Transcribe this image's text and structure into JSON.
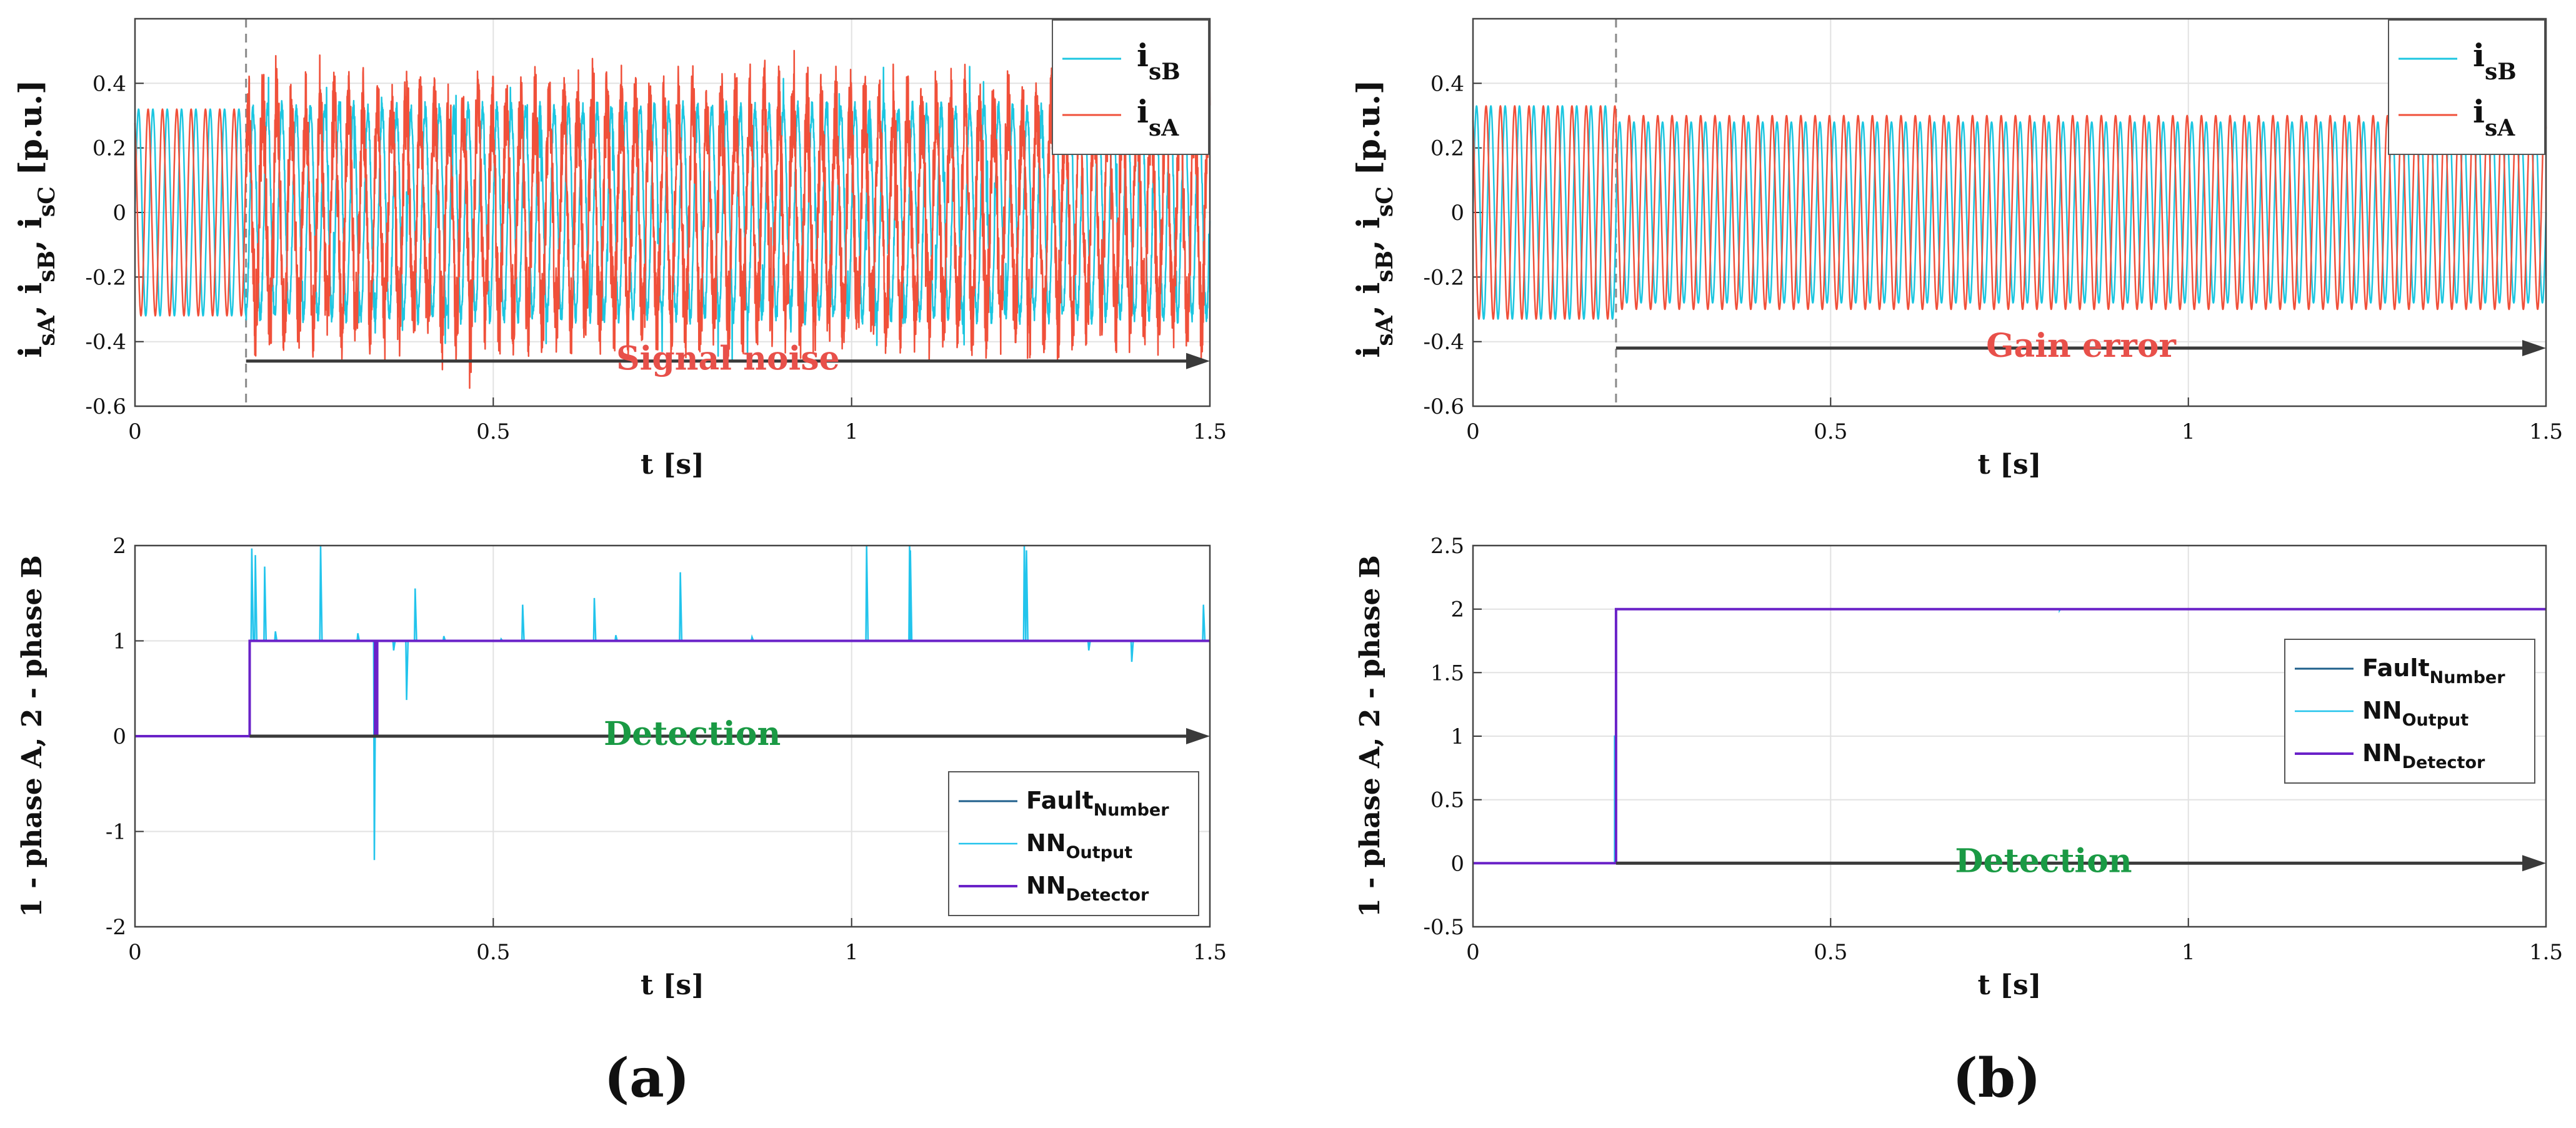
{
  "panel_labels": [
    "(a)",
    "(b)"
  ],
  "colors": {
    "isB": "#1cc6e0",
    "isA": "#f0503a",
    "fault": "#1f5f8b",
    "nn_output": "#22c4ec",
    "nn_detector": "#6a22c8",
    "arrow": "#3a3a3a",
    "annotation_red": "#e8504a",
    "annotation_green": "#1a9a44",
    "grid": "#e2e2e2",
    "fault_start": "#8a8a8a"
  },
  "chart_data": [
    {
      "id": "a-top",
      "type": "line",
      "xlabel": "t [s]",
      "ylabel": "i_sA, i_sB, i_sC [p.u.]",
      "xlim": [
        0,
        1.5
      ],
      "ylim": [
        -0.6,
        0.6
      ],
      "xticks": [
        0,
        0.5,
        1,
        1.5
      ],
      "xtick_labels": [
        "0",
        "0.5",
        "1",
        "1.5"
      ],
      "yticks": [
        -0.6,
        -0.4,
        -0.2,
        0,
        0.2,
        0.4
      ],
      "ytick_labels": [
        "-0.6",
        "-0.4",
        "-0.2",
        "0",
        "0.2",
        "0.4"
      ],
      "grid": true,
      "legend_position": "top-right",
      "fault_start": 0.155,
      "annotation": {
        "text": "Signal noise",
        "from": 0.155,
        "to": 1.5,
        "y": -0.46,
        "color": "annotation_red"
      },
      "series": [
        {
          "name": "i_sB",
          "signal": "sine",
          "amplitude": 0.32,
          "cycles_per_second": 50,
          "phase_deg": 0,
          "noise_after_fault": 0.02,
          "color": "isB"
        },
        {
          "name": "i_sA",
          "signal": "sine",
          "amplitude": 0.32,
          "cycles_per_second": 50,
          "phase_deg": 120,
          "noise_after_fault": 0.1,
          "color": "isA"
        }
      ]
    },
    {
      "id": "b-top",
      "type": "line",
      "xlabel": "t [s]",
      "ylabel": "i_sA, i_sB, i_sC [p.u.]",
      "xlim": [
        0,
        1.5
      ],
      "ylim": [
        -0.6,
        0.6
      ],
      "xticks": [
        0,
        0.5,
        1,
        1.5
      ],
      "xtick_labels": [
        "0",
        "0.5",
        "1",
        "1.5"
      ],
      "yticks": [
        -0.6,
        -0.4,
        -0.2,
        0,
        0.2,
        0.4
      ],
      "ytick_labels": [
        "-0.6",
        "-0.4",
        "-0.2",
        "0",
        "0.2",
        "0.4"
      ],
      "grid": true,
      "legend_position": "top-right",
      "fault_start": 0.2,
      "annotation": {
        "text": "Gain error",
        "from": 0.2,
        "to": 1.5,
        "y": -0.42,
        "color": "annotation_red"
      },
      "series": [
        {
          "name": "i_sB",
          "signal": "sine",
          "amplitude": 0.33,
          "amplitude_after_fault": 0.28,
          "cycles_per_second": 50,
          "phase_deg": 0,
          "color": "isB"
        },
        {
          "name": "i_sA",
          "signal": "sine",
          "amplitude": 0.33,
          "amplitude_after_fault": 0.3,
          "cycles_per_second": 50,
          "phase_deg": 120,
          "color": "isA"
        }
      ]
    },
    {
      "id": "a-bottom",
      "type": "line",
      "xlabel": "t [s]",
      "ylabel": "1 - phase A, 2 - phase B",
      "xlim": [
        0,
        1.5
      ],
      "ylim": [
        -2,
        2
      ],
      "xticks": [
        0,
        0.5,
        1,
        1.5
      ],
      "xtick_labels": [
        "0",
        "0.5",
        "1",
        "1.5"
      ],
      "yticks": [
        -2,
        -1,
        0,
        1,
        2
      ],
      "ytick_labels": [
        "-2",
        "-1",
        "0",
        "1",
        "2"
      ],
      "grid": true,
      "legend_position": "bottom-right",
      "annotation": {
        "text": "Detection",
        "from": 0.16,
        "to": 1.5,
        "y": 0,
        "color": "annotation_green"
      },
      "series": [
        {
          "name": "Fault",
          "subscript": "Number",
          "color": "fault",
          "width": 3,
          "points": [
            [
              0,
              0
            ],
            [
              0.16,
              0
            ],
            [
              0.16,
              1
            ],
            [
              1.5,
              1
            ]
          ]
        },
        {
          "name": "NN",
          "subscript": "Output",
          "color": "nn_output",
          "width": 2.5,
          "baseline": 1,
          "fault_time": 0.16,
          "spikes": [
            [
              0.162,
              1.97
            ],
            [
              0.167,
              1.9
            ],
            [
              0.18,
              1.78
            ],
            [
              0.195,
              1.1
            ],
            [
              0.258,
              2.0
            ],
            [
              0.31,
              1.08
            ],
            [
              0.333,
              -1.3
            ],
            [
              0.36,
              0.9
            ],
            [
              0.378,
              0.38
            ],
            [
              0.39,
              1.55
            ],
            [
              0.43,
              1.05
            ],
            [
              0.51,
              1.02
            ],
            [
              0.54,
              1.38
            ],
            [
              0.64,
              1.45
            ],
            [
              0.67,
              1.06
            ],
            [
              0.76,
              1.72
            ],
            [
              0.86,
              1.04
            ],
            [
              1.02,
              2.0
            ],
            [
              1.08,
              2.0
            ],
            [
              1.081,
              1.95
            ],
            [
              1.24,
              2.0
            ],
            [
              1.243,
              1.95
            ],
            [
              1.33,
              0.9
            ],
            [
              1.39,
              0.78
            ],
            [
              1.49,
              1.38
            ]
          ]
        },
        {
          "name": "NN",
          "subscript": "Detector",
          "color": "nn_detector",
          "width": 4,
          "points": [
            [
              0,
              0
            ],
            [
              0.16,
              0
            ],
            [
              0.16,
              1
            ],
            [
              0.335,
              1
            ],
            [
              0.335,
              0
            ],
            [
              0.338,
              0
            ],
            [
              0.338,
              1
            ],
            [
              1.5,
              1
            ]
          ]
        }
      ]
    },
    {
      "id": "b-bottom",
      "type": "line",
      "xlabel": "t [s]",
      "ylabel": "1 - phase A, 2 - phase B",
      "xlim": [
        0,
        1.5
      ],
      "ylim": [
        -0.5,
        2.5
      ],
      "xticks": [
        0,
        0.5,
        1,
        1.5
      ],
      "xtick_labels": [
        "0",
        "0.5",
        "1",
        "1.5"
      ],
      "yticks": [
        -0.5,
        0,
        0.5,
        1,
        1.5,
        2,
        2.5
      ],
      "ytick_labels": [
        "-0.5",
        "0",
        "0.5",
        "1",
        "1.5",
        "2",
        "2.5"
      ],
      "grid": true,
      "legend_position": "right",
      "annotation": {
        "text": "Detection",
        "from": 0.2,
        "to": 1.5,
        "y": 0,
        "color": "annotation_green"
      },
      "series": [
        {
          "name": "Fault",
          "subscript": "Number",
          "color": "fault",
          "width": 3,
          "points": [
            [
              0,
              0
            ],
            [
              0.2,
              0
            ],
            [
              0.2,
              2
            ],
            [
              1.5,
              2
            ]
          ]
        },
        {
          "name": "NN",
          "subscript": "Output",
          "color": "nn_output",
          "width": 2.5,
          "points": [
            [
              0,
              0
            ],
            [
              0.198,
              0
            ],
            [
              0.198,
              1.0
            ],
            [
              0.2,
              1.0
            ],
            [
              0.2,
              2
            ],
            [
              0.82,
              2
            ],
            [
              0.82,
              1.99
            ],
            [
              0.821,
              2
            ],
            [
              1.5,
              2
            ]
          ]
        },
        {
          "name": "NN",
          "subscript": "Detector",
          "color": "nn_detector",
          "width": 4,
          "points": [
            [
              0,
              0
            ],
            [
              0.2,
              0
            ],
            [
              0.2,
              2
            ],
            [
              1.5,
              2
            ]
          ]
        }
      ]
    }
  ]
}
